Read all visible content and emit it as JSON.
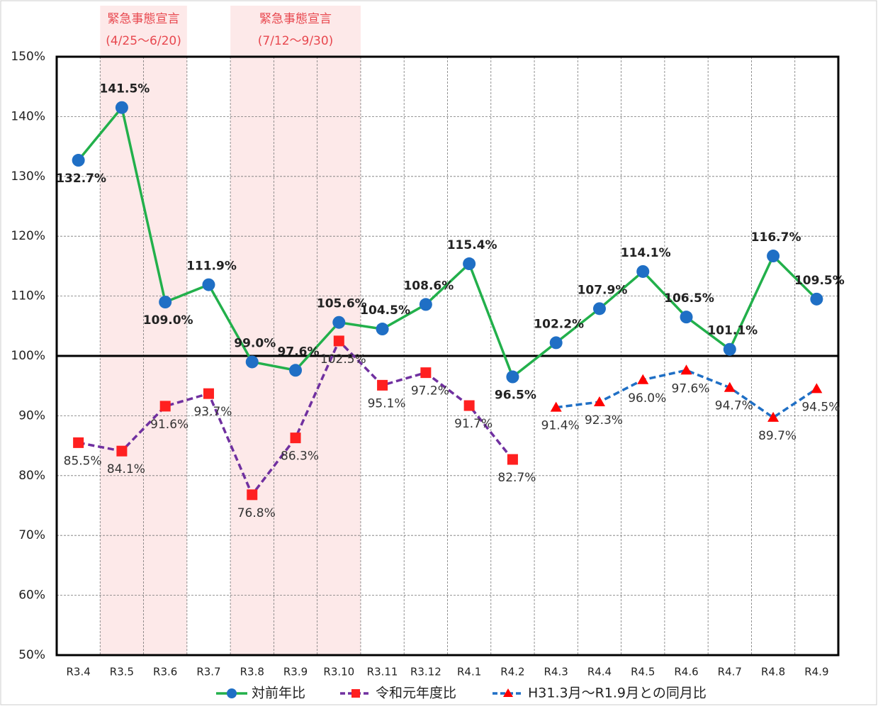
{
  "chart_data": {
    "type": "line",
    "categories": [
      "R3.4",
      "R3.5",
      "R3.6",
      "R3.7",
      "R3.8",
      "R3.9",
      "R3.10",
      "R3.11",
      "R3.12",
      "R4.1",
      "R4.2",
      "R4.3",
      "R4.4",
      "R4.5",
      "R4.6",
      "R4.7",
      "R4.8",
      "R4.9"
    ],
    "series": [
      {
        "name": "対前年比",
        "color": "#22b04b",
        "marker": "circle",
        "marker_color": "#1f6fc5",
        "dash": false,
        "values": [
          132.7,
          141.5,
          109.0,
          111.9,
          99.0,
          97.6,
          105.6,
          104.5,
          108.6,
          115.4,
          96.5,
          102.2,
          107.9,
          114.1,
          106.5,
          101.1,
          116.7,
          109.5
        ],
        "value_labels": [
          "132.7%",
          "141.5%",
          "109.0%",
          "111.9%",
          "99.0%",
          "97.6%",
          "105.6%",
          "104.5%",
          "108.6%",
          "115.4%",
          "96.5%",
          "102.2%",
          "107.9%",
          "114.1%",
          "106.5%",
          "101.1%",
          "116.7%",
          "109.5%"
        ]
      },
      {
        "name": "令和元年度比",
        "color": "#7030a0",
        "marker": "square",
        "marker_color": "#ff2020",
        "dash": true,
        "values": [
          85.5,
          84.1,
          91.6,
          93.7,
          76.8,
          86.3,
          102.5,
          95.1,
          97.2,
          91.7,
          82.7,
          null,
          null,
          null,
          null,
          null,
          null,
          null
        ],
        "value_labels": [
          "85.5%",
          "84.1%",
          "91.6%",
          "93.7%",
          "76.8%",
          "86.3%",
          "102.5%",
          "95.1%",
          "97.2%",
          "91.7%",
          "82.7%",
          null,
          null,
          null,
          null,
          null,
          null,
          null
        ]
      },
      {
        "name": "H31.3月～R1.9月との同月比",
        "color": "#1f6fc5",
        "marker": "triangle",
        "marker_color": "#ff0000",
        "dash": true,
        "values": [
          null,
          null,
          null,
          null,
          null,
          null,
          null,
          null,
          null,
          null,
          null,
          91.4,
          92.3,
          96.0,
          97.6,
          94.7,
          89.7,
          94.5
        ],
        "value_labels": [
          null,
          null,
          null,
          null,
          null,
          null,
          null,
          null,
          null,
          null,
          null,
          "91.4%",
          "92.3%",
          "96.0%",
          "97.6%",
          "94.7%",
          "89.7%",
          "94.5%"
        ]
      }
    ],
    "ylim": [
      50,
      150
    ],
    "yticks": [
      {
        "value": 50,
        "label": "50%"
      },
      {
        "value": 60,
        "label": "60%"
      },
      {
        "value": 70,
        "label": "70%"
      },
      {
        "value": 80,
        "label": "80%"
      },
      {
        "value": 90,
        "label": "90%"
      },
      {
        "value": 100,
        "label": "100%"
      },
      {
        "value": 110,
        "label": "110%"
      },
      {
        "value": 120,
        "label": "120%"
      },
      {
        "value": 130,
        "label": "130%"
      },
      {
        "value": 140,
        "label": "140%"
      },
      {
        "value": 150,
        "label": "150%"
      }
    ],
    "reference_line": 100,
    "grid": true,
    "legend": "bottom",
    "annotations": [
      {
        "text": "緊急事態宣言",
        "subtext": "(4/25～6/20)",
        "start": "R3.5",
        "end": "R3.6",
        "color": "#fde9e9"
      },
      {
        "text": "緊急事態宣言",
        "subtext": "(7/12～9/30)",
        "start": "R3.8",
        "end": "R3.10",
        "color": "#fde9e9"
      }
    ]
  }
}
